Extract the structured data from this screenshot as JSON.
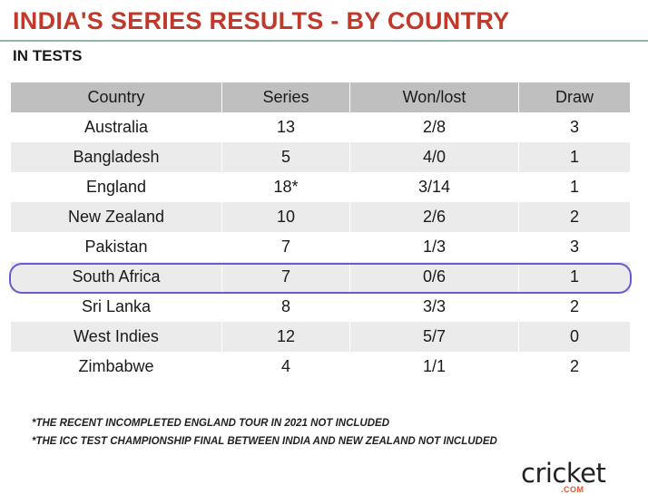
{
  "header": {
    "title": "INDIA'S SERIES RESULTS - BY COUNTRY",
    "subtitle": "IN TESTS"
  },
  "chart_data": {
    "type": "table",
    "title": "INDIA'S SERIES RESULTS - BY COUNTRY",
    "subtitle": "IN TESTS",
    "columns": [
      "Country",
      "Series",
      "Won/lost",
      "Draw"
    ],
    "rows": [
      [
        "Australia",
        "13",
        "2/8",
        "3"
      ],
      [
        "Bangladesh",
        "5",
        "4/0",
        "1"
      ],
      [
        "England",
        "18*",
        "3/14",
        "1"
      ],
      [
        "New Zealand",
        "10",
        "2/6",
        "2"
      ],
      [
        "Pakistan",
        "7",
        "1/3",
        "3"
      ],
      [
        "South Africa",
        "7",
        "0/6",
        "1"
      ],
      [
        "Sri Lanka",
        "8",
        "3/3",
        "2"
      ],
      [
        "West Indies",
        "12",
        "5/7",
        "0"
      ],
      [
        "Zimbabwe",
        "4",
        "1/1",
        "2"
      ]
    ],
    "highlighted_row": "South Africa"
  },
  "footnotes": [
    "*THE RECENT INCOMPLETED ENGLAND TOUR IN 2021 NOT INCLUDED",
    "*THE ICC TEST CHAMPIONSHIP FINAL BETWEEN INDIA AND NEW ZEALAND NOT INCLUDED"
  ],
  "logo": {
    "main": "cricket",
    "sub": ".COM"
  },
  "colors": {
    "title": "#c0392b",
    "header_bg": "#bfbfbf",
    "stripe_bg": "#ebebeb",
    "highlight_border": "#6a5acd",
    "logo_accent": "#e4572e"
  }
}
